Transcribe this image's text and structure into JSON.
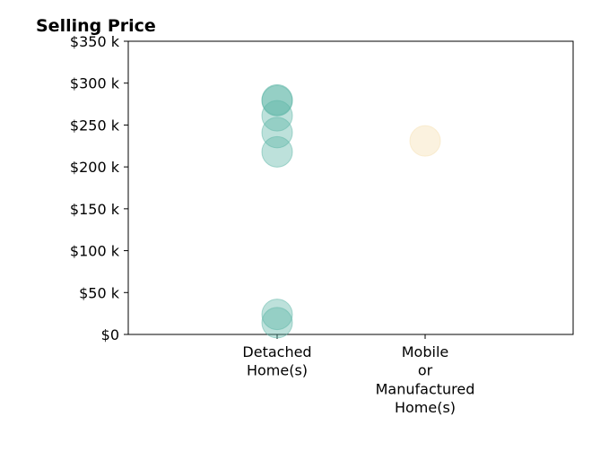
{
  "chart_data": {
    "type": "scatter",
    "title": "Selling Price",
    "xlabel": "",
    "ylabel": "",
    "ylim": [
      0,
      350000
    ],
    "yticks": [
      0,
      50000,
      100000,
      150000,
      200000,
      250000,
      300000,
      350000
    ],
    "ytick_labels": [
      "$0",
      "$50 k",
      "$100 k",
      "$150 k",
      "$200 k",
      "$250 k",
      "$300 k",
      "$350 k"
    ],
    "categories": [
      {
        "id": "detached",
        "lines": [
          "Detached",
          "Home(s)"
        ]
      },
      {
        "id": "mobile",
        "lines": [
          "Mobile",
          "or",
          "Manufactured",
          "Home(s)"
        ]
      }
    ],
    "series": [
      {
        "category": "detached",
        "color": "#5bb5a5",
        "values": [
          280000,
          279000,
          261000,
          241000,
          218000,
          24000,
          14000
        ]
      },
      {
        "category": "mobile",
        "color": "#f5dfb0",
        "values": [
          231000
        ]
      }
    ],
    "grid": false,
    "legend": "none"
  }
}
